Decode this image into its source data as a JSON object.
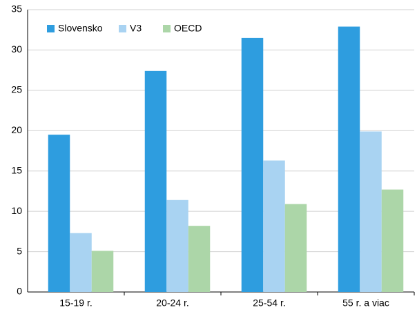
{
  "chart_data": {
    "type": "bar",
    "categories": [
      "15-19 r.",
      "20-24 r.",
      "25-54 r.",
      "55 r. a viac"
    ],
    "series": [
      {
        "name": "Slovensko",
        "color": "#2e9ddf",
        "values": [
          19.5,
          27.4,
          31.5,
          32.9
        ]
      },
      {
        "name": "V3",
        "color": "#a9d3f2",
        "values": [
          7.3,
          11.4,
          16.3,
          19.9
        ]
      },
      {
        "name": "OECD",
        "color": "#acd6a8",
        "values": [
          5.1,
          8.2,
          10.9,
          12.7
        ]
      }
    ],
    "ylim": [
      0,
      35
    ],
    "yticks": [
      0,
      5,
      10,
      15,
      20,
      25,
      30,
      35
    ],
    "grid": true,
    "legend": "top-left"
  }
}
